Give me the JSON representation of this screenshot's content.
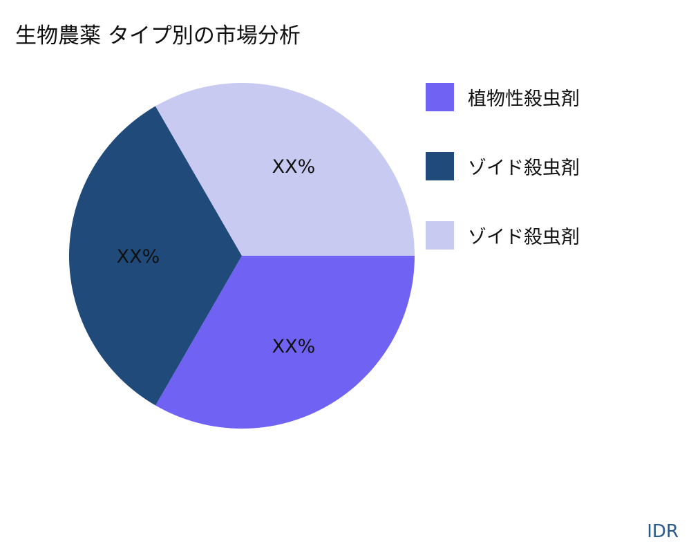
{
  "title": "生物農薬 タイプ別の市場分析",
  "brand": "IDR",
  "chart_data": {
    "type": "pie",
    "title": "生物農薬 タイプ別の市場分析",
    "start_angle": "east, clockwise",
    "legend_placement": "right",
    "slices": [
      {
        "name": "植物性殺虫剤",
        "value": 33.33,
        "label": "XX%",
        "color": "#7062F2"
      },
      {
        "name": "ゾイド殺虫剤",
        "value": 33.33,
        "label": "XX%",
        "color": "#1F4A7A"
      },
      {
        "name": "ゾイド殺虫剤",
        "value": 33.34,
        "label": "XX%",
        "color": "#C9CAF2"
      }
    ]
  }
}
